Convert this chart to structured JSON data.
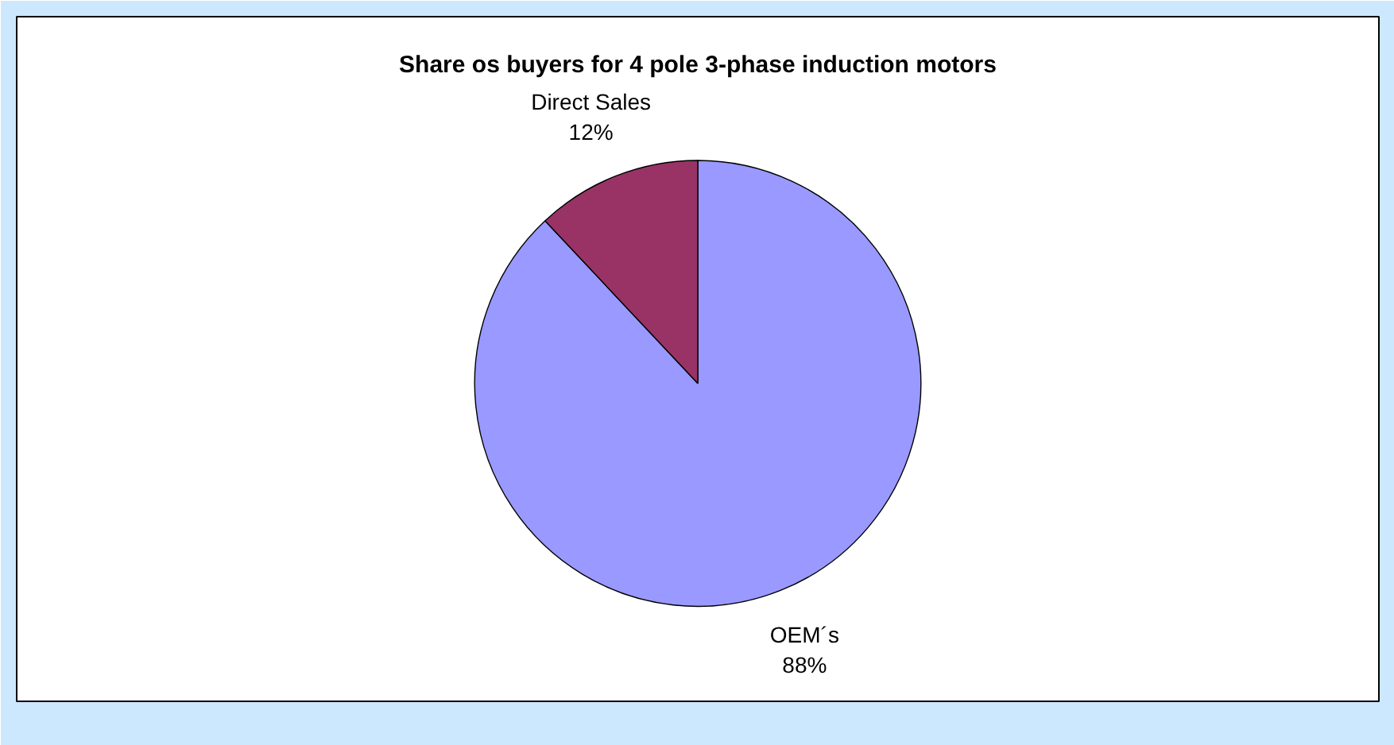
{
  "chart_data": {
    "type": "pie",
    "title": "Share os buyers for 4 pole 3-phase induction motors",
    "categories": [
      "OEM´s",
      "Direct Sales"
    ],
    "values": [
      88,
      12
    ],
    "colors": [
      "#9999ff",
      "#993366"
    ],
    "value_labels": [
      "88%",
      "12%"
    ]
  }
}
